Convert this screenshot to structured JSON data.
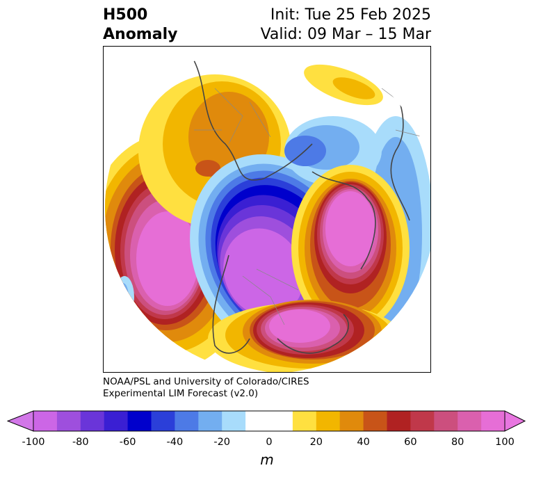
{
  "title": {
    "left_line1": "H500",
    "left_line2": "Anomaly",
    "init": "Init: Tue 25 Feb 2025",
    "valid": "Valid: 09 Mar – 15 Mar"
  },
  "credit": {
    "line1": "NOAA/PSL and University of Colorado/CIRES",
    "line2": "Experimental LIM Forecast (v2.0)"
  },
  "colorbar": {
    "unit": "m",
    "ticks": [
      "-100",
      "-80",
      "-60",
      "-40",
      "-20",
      "0",
      "20",
      "40",
      "60",
      "80",
      "100"
    ],
    "colors": [
      "#cc66e6",
      "#9e4fdd",
      "#6a35d9",
      "#3a1fd3",
      "#0000cc",
      "#2b3fd9",
      "#4d7ae6",
      "#73aef0",
      "#a8dcfb",
      "#ffffff",
      "#ffffff",
      "#ffe040",
      "#f2b600",
      "#e08a0c",
      "#c85418",
      "#b02222",
      "#c0384a",
      "#cc4f7e",
      "#da60ae",
      "#e66ed6"
    ],
    "under_color": "#d277e8",
    "over_color": "#e876e0"
  }
}
